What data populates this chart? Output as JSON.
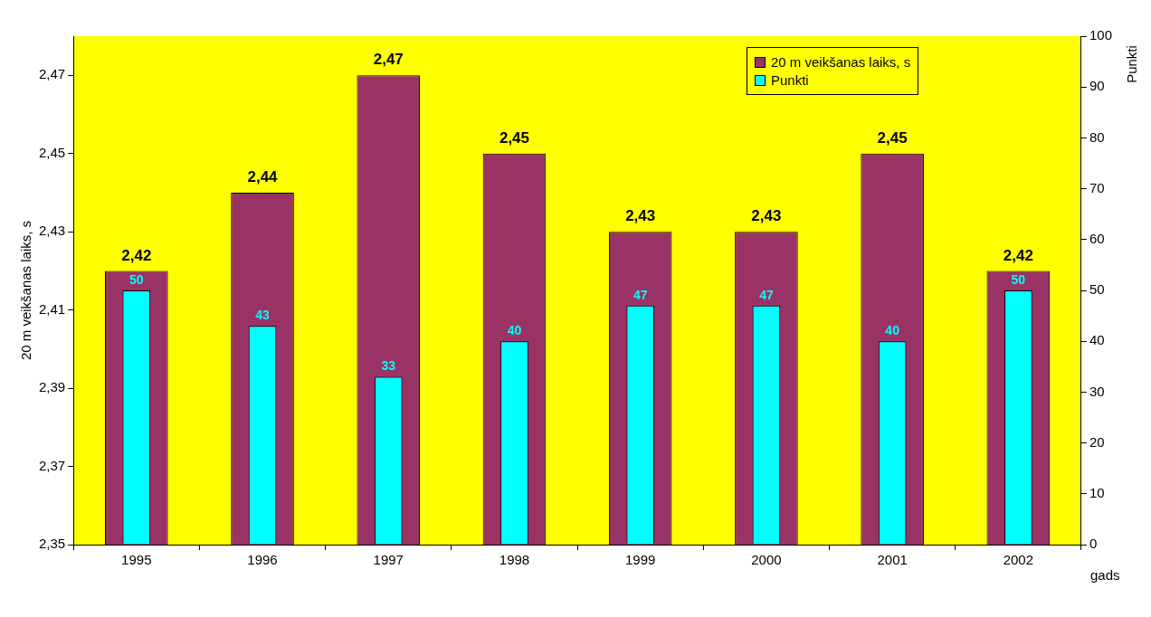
{
  "chart_data": {
    "type": "bar",
    "xlabel": "gads",
    "ylabel": "20 m veikšanas laiks, s",
    "y2label": "Punkti",
    "categories": [
      "1995",
      "1996",
      "1997",
      "1998",
      "1999",
      "2000",
      "2001",
      "2002"
    ],
    "series": [
      {
        "name": "20 m veikšanas laiks, s",
        "color": "#993366",
        "values": [
          2.42,
          2.44,
          2.47,
          2.45,
          2.43,
          2.43,
          2.45,
          2.42
        ],
        "value_labels": [
          "2,42",
          "2,44",
          "2,47",
          "2,45",
          "2,43",
          "2,43",
          "2,45",
          "2,42"
        ]
      },
      {
        "name": "Punkti",
        "color": "#00ffff",
        "axis": "y2",
        "values": [
          50,
          43,
          33,
          40,
          47,
          47,
          40,
          50
        ],
        "value_labels": [
          "50",
          "43",
          "33",
          "40",
          "47",
          "47",
          "40",
          "50"
        ]
      }
    ],
    "ylim": [
      2.35,
      2.48
    ],
    "yticks": [
      {
        "value": 2.35,
        "label": "2,35"
      },
      {
        "value": 2.37,
        "label": "2,37"
      },
      {
        "value": 2.39,
        "label": "2,39"
      },
      {
        "value": 2.41,
        "label": "2,41"
      },
      {
        "value": 2.43,
        "label": "2,43"
      },
      {
        "value": 2.45,
        "label": "2,45"
      },
      {
        "value": 2.47,
        "label": "2,47"
      }
    ],
    "y2lim": [
      0,
      100
    ],
    "y2ticks": [
      0,
      10,
      20,
      30,
      40,
      50,
      60,
      70,
      80,
      90,
      100
    ],
    "legend": "top right",
    "grid": false
  }
}
